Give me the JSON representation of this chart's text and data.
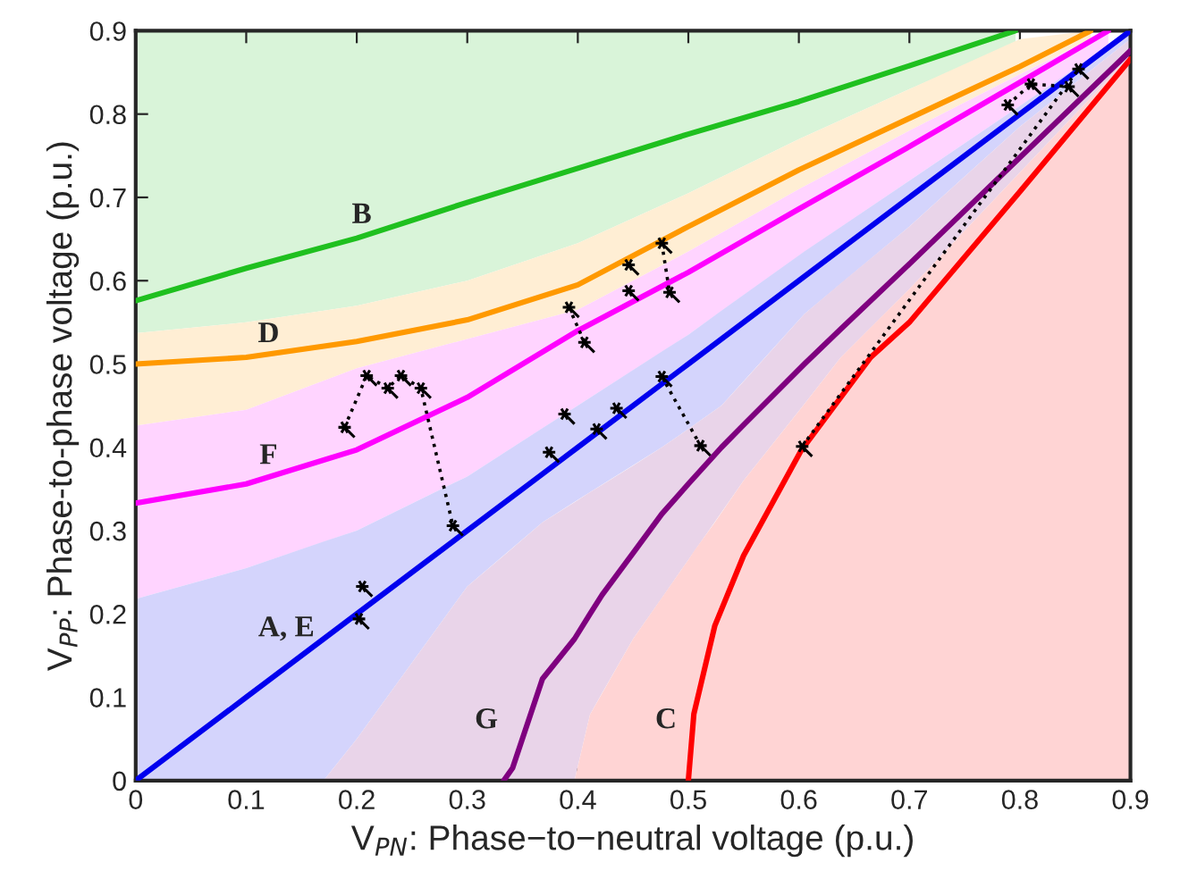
{
  "chart_data": {
    "type": "line",
    "xlabel": "V$_{PN}$: Phase−to−neutral voltage (p.u.)",
    "ylabel": "V$_{PP}$: Phase-to-phase voltage (p.u.)",
    "xlim": [
      0,
      0.9
    ],
    "ylim": [
      0,
      0.9
    ],
    "xticks": [
      0,
      0.1,
      0.2,
      0.3,
      0.4,
      0.5,
      0.6,
      0.7,
      0.8,
      0.9
    ],
    "yticks": [
      0,
      0.1,
      0.2,
      0.3,
      0.4,
      0.5,
      0.6,
      0.7,
      0.8,
      0.9
    ],
    "grid": false,
    "legend": false,
    "series": [
      {
        "name": "B",
        "color": "#1fc01f",
        "x": [
          0,
          0.1,
          0.2,
          0.3,
          0.4,
          0.5,
          0.6,
          0.7,
          0.796
        ],
        "values": [
          0.576,
          0.615,
          0.651,
          0.694,
          0.735,
          0.776,
          0.815,
          0.858,
          0.9
        ],
        "lower": [
          0.537,
          0.55,
          0.57,
          0.6,
          0.645,
          0.705,
          0.77,
          0.83,
          0.885
        ],
        "upper": [
          0.9,
          0.9,
          0.9,
          0.9,
          0.9,
          0.9,
          0.9,
          0.9,
          0.9
        ]
      },
      {
        "name": "D",
        "color": "#ff9900",
        "x": [
          0,
          0.1,
          0.2,
          0.3,
          0.4,
          0.5,
          0.6,
          0.7,
          0.8,
          0.864
        ],
        "values": [
          0.5,
          0.508,
          0.527,
          0.553,
          0.595,
          0.665,
          0.733,
          0.795,
          0.857,
          0.9
        ],
        "lower": [
          0.426,
          0.445,
          0.495,
          0.53,
          0.565,
          0.635,
          0.71,
          0.78,
          0.848,
          0.89
        ],
        "upper": [
          0.537,
          0.55,
          0.57,
          0.6,
          0.645,
          0.705,
          0.77,
          0.83,
          0.89,
          0.9
        ]
      },
      {
        "name": "F",
        "color": "#ff00ff",
        "x": [
          0,
          0.1,
          0.2,
          0.3,
          0.4,
          0.5,
          0.6,
          0.7,
          0.8,
          0.88
        ],
        "values": [
          0.333,
          0.356,
          0.397,
          0.46,
          0.54,
          0.61,
          0.686,
          0.761,
          0.838,
          0.9
        ],
        "lower": [
          0.218,
          0.255,
          0.3,
          0.365,
          0.45,
          0.535,
          0.63,
          0.72,
          0.81,
          0.88
        ],
        "upper": [
          0.426,
          0.445,
          0.495,
          0.53,
          0.565,
          0.635,
          0.71,
          0.78,
          0.848,
          0.9
        ]
      },
      {
        "name": "A, E",
        "color": "#0000ee",
        "x": [
          0,
          0.1,
          0.17,
          0.2,
          0.3,
          0.368,
          0.4,
          0.476,
          0.5,
          0.53,
          0.605,
          0.7,
          0.8,
          0.9
        ],
        "values": [
          0,
          0.1,
          0.17,
          0.2,
          0.3,
          0.368,
          0.4,
          0.476,
          0.5,
          0.53,
          0.605,
          0.7,
          0.8,
          0.9
        ],
        "lower": [
          0,
          0,
          0,
          0.05,
          0.233,
          0.31,
          0.337,
          0.4,
          0.422,
          0.45,
          0.56,
          0.665,
          0.785,
          0.89
        ],
        "upper": [
          0.218,
          0.255,
          0.287,
          0.3,
          0.365,
          0.423,
          0.45,
          0.515,
          0.535,
          0.564,
          0.635,
          0.72,
          0.81,
          0.9
        ]
      },
      {
        "name": "G",
        "color": "#7f007f",
        "x": [
          0.17,
          0.2,
          0.3,
          0.333,
          0.341,
          0.368,
          0.397,
          0.411,
          0.422,
          0.45,
          0.476,
          0.5,
          0.53,
          0.55,
          0.605,
          0.638,
          0.7,
          0.8,
          0.9
        ],
        "values": [
          null,
          null,
          null,
          0,
          0.015,
          0.122,
          0.17,
          0.2,
          0.223,
          0.273,
          0.32,
          0.356,
          0.4,
          0.427,
          0.5,
          0.542,
          0.62,
          0.748,
          0.876
        ],
        "lower": [
          0,
          0,
          0,
          0,
          0,
          0,
          0,
          0.079,
          0.105,
          0.17,
          0.219,
          0.265,
          0.322,
          0.36,
          0.452,
          0.508,
          0.59,
          0.73,
          0.87
        ],
        "upper": [
          0,
          0.05,
          0.233,
          0.27,
          0.279,
          0.31,
          0.334,
          0.346,
          0.355,
          0.378,
          0.4,
          0.422,
          0.45,
          0.479,
          0.56,
          0.597,
          0.665,
          0.785,
          0.89
        ]
      },
      {
        "name": "C",
        "color": "#ff0000",
        "x": [
          0.397,
          0.411,
          0.45,
          0.5,
          0.505,
          0.524,
          0.55,
          0.602,
          0.638,
          0.665,
          0.7,
          0.8,
          0.9
        ],
        "values": [
          null,
          null,
          null,
          0,
          0.08,
          0.186,
          0.27,
          0.396,
          0.46,
          0.508,
          0.55,
          0.707,
          0.866
        ],
        "lower": [
          0,
          0,
          0,
          0,
          0,
          0,
          0,
          0,
          0,
          0,
          0,
          0,
          0
        ],
        "upper": [
          0,
          0.079,
          0.17,
          0.265,
          0.275,
          0.31,
          0.36,
          0.447,
          0.508,
          0.544,
          0.59,
          0.73,
          0.87
        ]
      },
      {
        "line_style": "dotted",
        "color": "#000000",
        "x": [
          0.189,
          0.209,
          0.228,
          0.24,
          0.258,
          0.287
        ],
        "values": [
          0.424,
          0.486,
          0.471,
          0.486,
          0.471,
          0.306
        ]
      },
      {
        "line_style": "dotted",
        "color": "#000000",
        "x": [
          0.392,
          0.406
        ],
        "values": [
          0.568,
          0.526
        ]
      },
      {
        "line_style": "dotted",
        "color": "#000000",
        "x": [
          0.476,
          0.483
        ],
        "values": [
          0.645,
          0.586
        ]
      },
      {
        "line_style": "dotted",
        "color": "#000000",
        "x": [
          0.476,
          0.511
        ],
        "values": [
          0.485,
          0.402
        ]
      },
      {
        "line_style": "dotted",
        "color": "#000000",
        "x": [
          0.789,
          0.81,
          0.844
        ],
        "values": [
          0.811,
          0.836,
          0.833
        ]
      },
      {
        "line_style": "dotted",
        "color": "#000000",
        "x": [
          0.603,
          0.853
        ],
        "values": [
          0.401,
          0.854
        ]
      },
      {
        "type": "scatter",
        "marker": "cross",
        "color": "#000000",
        "x": [
          0.189,
          0.209,
          0.228,
          0.24,
          0.258,
          0.287,
          0.205,
          0.202,
          0.374,
          0.388,
          0.417,
          0.435,
          0.476,
          0.511,
          0.392,
          0.406,
          0.446,
          0.446,
          0.476,
          0.483,
          0.603,
          0.789,
          0.81,
          0.844,
          0.853
        ],
        "values": [
          0.424,
          0.486,
          0.471,
          0.486,
          0.471,
          0.306,
          0.233,
          0.194,
          0.394,
          0.44,
          0.422,
          0.447,
          0.485,
          0.402,
          0.568,
          0.526,
          0.619,
          0.588,
          0.645,
          0.586,
          0.401,
          0.811,
          0.836,
          0.833,
          0.854
        ]
      }
    ]
  }
}
